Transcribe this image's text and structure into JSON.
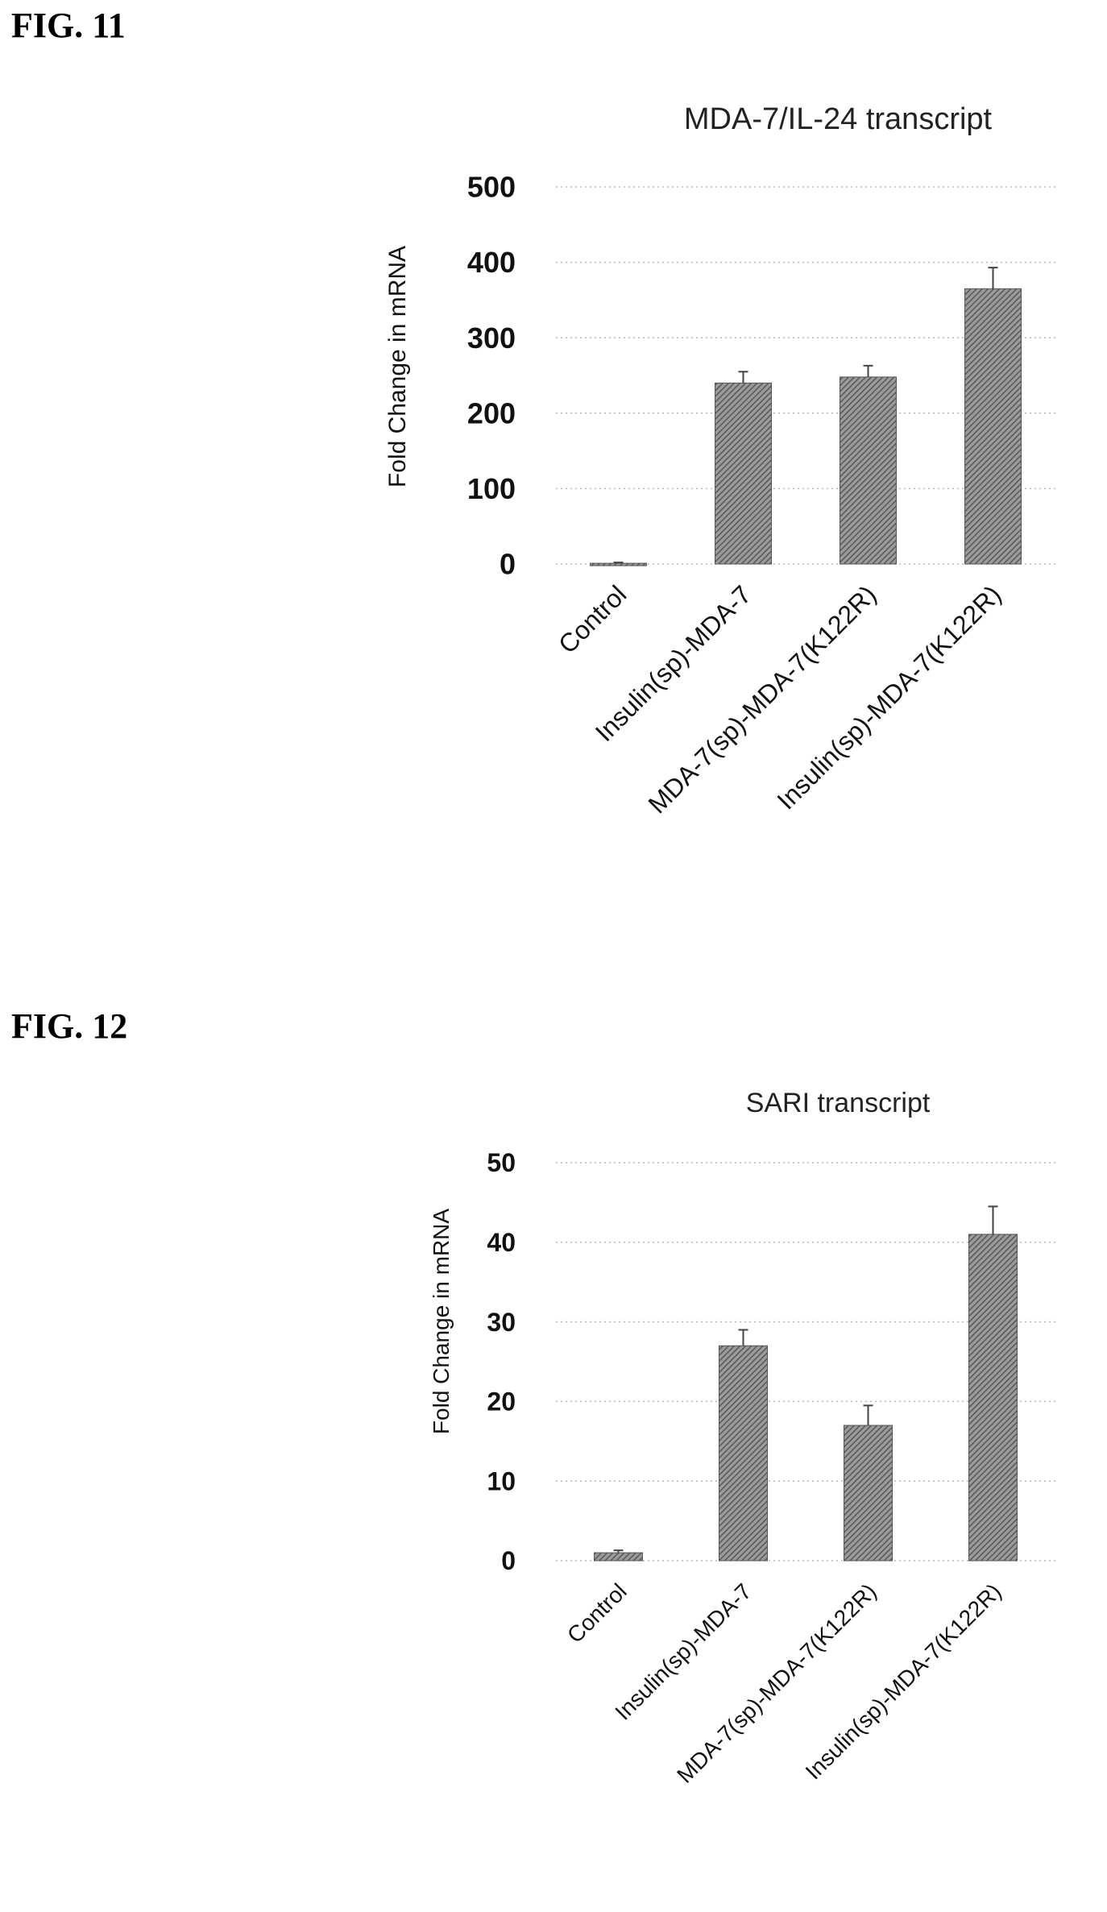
{
  "chart_data": [
    {
      "type": "bar",
      "figure_label": "FIG. 11",
      "title": "MDA-7/IL-24 transcript",
      "ylabel": "Fold Change in mRNA",
      "xlabel": "",
      "ylim": [
        0,
        500
      ],
      "yticks": [
        0,
        100,
        200,
        300,
        400,
        500
      ],
      "grid": true,
      "categories": [
        "Control",
        "Insulin(sp)-MDA-7",
        "MDA-7(sp)-MDA-7(K122R)",
        "Insulin(sp)-MDA-7(K122R)"
      ],
      "values": [
        1,
        240,
        248,
        365
      ],
      "errors": [
        1,
        15,
        15,
        28
      ]
    },
    {
      "type": "bar",
      "figure_label": "FIG. 12",
      "title": "SARI transcript",
      "ylabel": "Fold Change in mRNA",
      "xlabel": "",
      "ylim": [
        0,
        50
      ],
      "yticks": [
        0,
        10,
        20,
        30,
        40,
        50
      ],
      "grid": true,
      "categories": [
        "Control",
        "Insulin(sp)-MDA-7",
        "MDA-7(sp)-MDA-7(K122R)",
        "Insulin(sp)-MDA-7(K122R)"
      ],
      "values": [
        1,
        27,
        17,
        41
      ],
      "errors": [
        0.3,
        2,
        2.5,
        3.5
      ]
    }
  ],
  "colors": {
    "bar_fill": "#8a8a8a",
    "bar_hatch": "#4a4a4a",
    "grid": "#b8b8b8",
    "text": "#111111"
  }
}
